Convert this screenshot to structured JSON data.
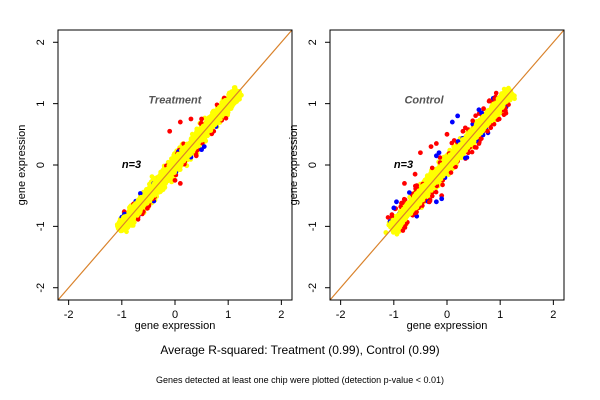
{
  "colors": {
    "background": "#ffffff",
    "frame": "#000000",
    "identity_line": "#d9822b",
    "not_significant": "#ffff00",
    "up_red": "#ff0000",
    "down_blue": "#0000ff",
    "panel_label": "#555555"
  },
  "chart_data": [
    {
      "type": "scatter",
      "title": "Treatment",
      "annotation": "n=3",
      "xlabel": "gene expression",
      "ylabel": "gene expression",
      "xlim": [
        -2.2,
        2.2
      ],
      "ylim": [
        -2.2,
        2.2
      ],
      "xticks": [
        -2,
        -1,
        0,
        1,
        2
      ],
      "yticks": [
        -2,
        -1,
        0,
        1,
        2
      ],
      "reference_line": {
        "slope": 1,
        "intercept": 0
      },
      "series": [
        {
          "color": "yellow",
          "points": [
            [
              -1.05,
              -1.05
            ],
            [
              -0.95,
              -0.9
            ],
            [
              -0.8,
              -0.75
            ],
            [
              -0.7,
              -0.72
            ],
            [
              -0.6,
              -0.55
            ],
            [
              -0.5,
              -0.48
            ],
            [
              -0.4,
              -0.38
            ],
            [
              -0.3,
              -0.25
            ],
            [
              -0.2,
              -0.22
            ],
            [
              -0.1,
              -0.05
            ],
            [
              0.0,
              0.02
            ],
            [
              0.1,
              0.12
            ],
            [
              0.2,
              0.18
            ],
            [
              0.3,
              0.32
            ],
            [
              0.4,
              0.42
            ],
            [
              0.5,
              0.48
            ],
            [
              0.6,
              0.62
            ],
            [
              0.7,
              0.68
            ],
            [
              0.8,
              0.82
            ],
            [
              0.9,
              0.88
            ],
            [
              1.0,
              1.02
            ],
            [
              1.1,
              1.08
            ],
            [
              1.2,
              1.2
            ]
          ]
        },
        {
          "color": "red",
          "points": [
            [
              -0.1,
              0.55
            ],
            [
              0.1,
              0.7
            ],
            [
              0.5,
              0.75
            ],
            [
              0.6,
              0.7
            ],
            [
              0.8,
              0.78
            ],
            [
              0.3,
              0.75
            ],
            [
              -0.6,
              -0.6
            ],
            [
              -0.3,
              -0.2
            ],
            [
              0.0,
              -0.25
            ],
            [
              0.1,
              -0.3
            ],
            [
              0.4,
              0.15
            ]
          ]
        },
        {
          "color": "blue",
          "points": [
            [
              -1.0,
              -0.85
            ],
            [
              -0.95,
              -0.8
            ],
            [
              -0.4,
              -0.3
            ],
            [
              0.5,
              0.25
            ],
            [
              0.55,
              0.3
            ]
          ]
        }
      ]
    },
    {
      "type": "scatter",
      "title": "Control",
      "annotation": "n=3",
      "xlabel": "gene expression",
      "ylabel": "gene expression",
      "xlim": [
        -2.2,
        2.2
      ],
      "ylim": [
        -2.2,
        2.2
      ],
      "xticks": [
        -2,
        -1,
        0,
        1,
        2
      ],
      "yticks": [
        -2,
        -1,
        0,
        1,
        2
      ],
      "reference_line": {
        "slope": 1,
        "intercept": 0
      },
      "series": [
        {
          "color": "yellow",
          "points": [
            [
              -1.15,
              -1.1
            ],
            [
              -1.0,
              -1.0
            ],
            [
              -0.9,
              -0.85
            ],
            [
              -0.8,
              -0.78
            ],
            [
              -0.6,
              -0.55
            ],
            [
              -0.5,
              -0.45
            ],
            [
              -0.4,
              -0.4
            ],
            [
              -0.3,
              -0.25
            ],
            [
              -0.2,
              -0.18
            ],
            [
              -0.1,
              -0.08
            ],
            [
              0.0,
              0.0
            ],
            [
              0.1,
              0.08
            ],
            [
              0.2,
              0.22
            ],
            [
              0.3,
              0.28
            ],
            [
              0.4,
              0.42
            ],
            [
              0.5,
              0.48
            ],
            [
              0.6,
              0.62
            ],
            [
              0.7,
              0.7
            ],
            [
              0.8,
              0.78
            ],
            [
              0.9,
              0.9
            ],
            [
              1.0,
              1.0
            ],
            [
              1.1,
              1.08
            ],
            [
              1.2,
              1.2
            ]
          ]
        },
        {
          "color": "red",
          "points": [
            [
              -0.8,
              -0.3
            ],
            [
              -0.6,
              -0.15
            ],
            [
              -0.5,
              0.2
            ],
            [
              -0.3,
              0.3
            ],
            [
              0.0,
              0.5
            ],
            [
              0.3,
              0.55
            ],
            [
              0.5,
              0.6
            ],
            [
              0.4,
              0.2
            ],
            [
              -0.4,
              -0.3
            ],
            [
              -0.1,
              -0.5
            ],
            [
              -0.8,
              -1.0
            ],
            [
              0.6,
              0.35
            ],
            [
              -0.2,
              0.35
            ]
          ]
        },
        {
          "color": "blue",
          "points": [
            [
              -0.2,
              0.15
            ],
            [
              -0.15,
              0.2
            ],
            [
              -1.0,
              -0.7
            ],
            [
              -0.95,
              -0.6
            ],
            [
              -0.9,
              -0.8
            ],
            [
              -0.2,
              -0.6
            ],
            [
              -0.1,
              -0.55
            ],
            [
              0.6,
              0.9
            ],
            [
              0.65,
              0.85
            ],
            [
              0.1,
              0.7
            ],
            [
              0.2,
              0.8
            ],
            [
              0.5,
              0.45
            ],
            [
              0.55,
              0.4
            ]
          ]
        }
      ]
    }
  ],
  "summary_text": "Average R-squared: Treatment (0.99), Control (0.99)",
  "footnote_text": "Genes detected at least one chip were plotted (detection p-value < 0.01)"
}
